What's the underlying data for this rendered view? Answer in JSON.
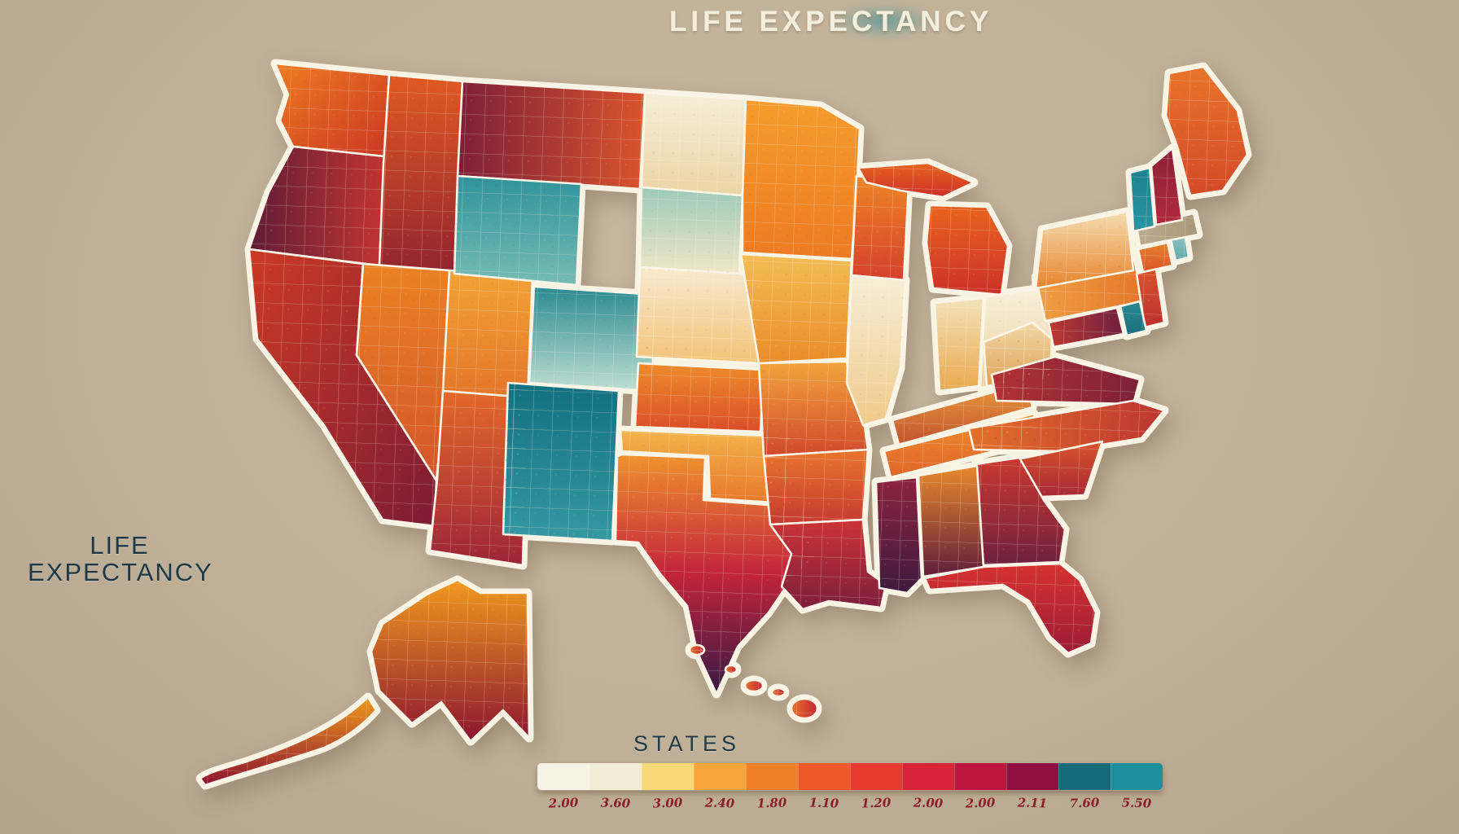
{
  "title": {
    "text": "LIFE EXPECTANCY"
  },
  "side_label": {
    "line1": "LIFE",
    "line2": "EXPECTANCY"
  },
  "chart_data": {
    "type": "choropleth_map",
    "title": "LIFE EXPECTANCY",
    "region": "United States (50 states, Alaska and Hawaii insets)",
    "style_note": "decorative watercolor county-mosaic choropleth on tan background; warm cream-yellow-orange-red-maroon scale with teal extreme",
    "legend": {
      "label": "STATES",
      "position": "bottom center",
      "colors": [
        "#f7f2e4",
        "#f3ecd6",
        "#f8d878",
        "#f6a53c",
        "#f1802a",
        "#ed5a28",
        "#e83a2e",
        "#d92339",
        "#bc163e",
        "#8f1040",
        "#166b7a",
        "#1d8e9b"
      ],
      "ticks": [
        "2.00",
        "3.60",
        "3.00",
        "2.40",
        "1.80",
        "1.10",
        "1.20",
        "2.00",
        "2.00",
        "2.11",
        "7.60",
        "5.50"
      ],
      "ticks_note": "tick numerals are stylized/illegible in source image; best-effort transcription"
    },
    "states": [
      {
        "id": "WA",
        "name": "Washington",
        "colors": [
          "#ef7b20",
          "#c93723"
        ],
        "dir": "d"
      },
      {
        "id": "OR",
        "name": "Oregon",
        "colors": [
          "#5f1c36",
          "#c13430"
        ],
        "dir": "h"
      },
      {
        "id": "CA",
        "name": "California",
        "colors": [
          "#cc3a24",
          "#7c1b34"
        ],
        "dir": "d"
      },
      {
        "id": "ID",
        "name": "Idaho",
        "colors": [
          "#e05a22",
          "#93242f"
        ],
        "dir": "v"
      },
      {
        "id": "NV",
        "name": "Nevada",
        "colors": [
          "#ea8224",
          "#d4552a"
        ],
        "dir": "v"
      },
      {
        "id": "UT",
        "name": "Utah",
        "colors": [
          "#f2a336",
          "#e4762a"
        ],
        "dir": "v"
      },
      {
        "id": "AZ",
        "name": "Arizona",
        "colors": [
          "#e4692b",
          "#9c2438"
        ],
        "dir": "v"
      },
      {
        "id": "MT",
        "name": "Montana",
        "colors": [
          "#7c1e38",
          "#d8542c"
        ],
        "dir": "h"
      },
      {
        "id": "WY",
        "name": "Wyoming",
        "colors": [
          "#2f939b",
          "#76bcb4"
        ],
        "dir": "v"
      },
      {
        "id": "CO",
        "name": "Colorado",
        "colors": [
          "#2a8a91",
          "#bfded2"
        ],
        "dir": "v"
      },
      {
        "id": "NM",
        "name": "New Mexico",
        "colors": [
          "#13707f",
          "#3598a2"
        ],
        "dir": "v"
      },
      {
        "id": "ND",
        "name": "North Dakota",
        "colors": [
          "#f5eed8",
          "#ecd4a4"
        ],
        "dir": "v"
      },
      {
        "id": "SD",
        "name": "South Dakota",
        "colors": [
          "#9ccab8",
          "#f0e6c8"
        ],
        "dir": "v"
      },
      {
        "id": "NE",
        "name": "Nebraska",
        "colors": [
          "#f7ead0",
          "#f3c377"
        ],
        "dir": "v"
      },
      {
        "id": "KS",
        "name": "Kansas",
        "colors": [
          "#ee8c2b",
          "#da4e2a"
        ],
        "dir": "v"
      },
      {
        "id": "OK",
        "name": "Oklahoma",
        "colors": [
          "#f3b44c",
          "#e8772a"
        ],
        "dir": "v"
      },
      {
        "id": "TX",
        "name": "Texas",
        "colors": [
          "#f0922e",
          "#c2233a",
          "#371a44"
        ],
        "dir": "v"
      },
      {
        "id": "MN",
        "name": "Minnesota",
        "colors": [
          "#f59d2c",
          "#ed7a23"
        ],
        "dir": "v"
      },
      {
        "id": "IA",
        "name": "Iowa",
        "colors": [
          "#f4bd55",
          "#e98c2a"
        ],
        "dir": "v"
      },
      {
        "id": "MO",
        "name": "Missouri",
        "colors": [
          "#f2a43c",
          "#d1492c"
        ],
        "dir": "v"
      },
      {
        "id": "AR",
        "name": "Arkansas",
        "colors": [
          "#e8752c",
          "#c53a30"
        ],
        "dir": "v"
      },
      {
        "id": "LA",
        "name": "Louisiana",
        "colors": [
          "#cc3336",
          "#7c1e3c"
        ],
        "dir": "v"
      },
      {
        "id": "WI",
        "name": "Wisconsin",
        "colors": [
          "#ee8526",
          "#d5402c"
        ],
        "dir": "v"
      },
      {
        "id": "IL",
        "name": "Illinois",
        "colors": [
          "#f7eed6",
          "#efca8a"
        ],
        "dir": "v"
      },
      {
        "id": "MI",
        "name": "Michigan",
        "colors": [
          "#e8641f",
          "#cc3028"
        ],
        "dir": "v"
      },
      {
        "id": "IN",
        "name": "Indiana",
        "colors": [
          "#f4e2ba",
          "#e9a94e"
        ],
        "dir": "v"
      },
      {
        "id": "OH",
        "name": "Ohio",
        "colors": [
          "#f7f0dc",
          "#ecd29e"
        ],
        "dir": "v"
      },
      {
        "id": "KY",
        "name": "Kentucky",
        "colors": [
          "#e89a3c",
          "#c2532e"
        ],
        "dir": "v"
      },
      {
        "id": "TN",
        "name": "Tennessee",
        "colors": [
          "#f0902c",
          "#e0642a"
        ],
        "dir": "v"
      },
      {
        "id": "MS",
        "name": "Mississippi",
        "colors": [
          "#8c2340",
          "#3f1a3e"
        ],
        "dir": "v"
      },
      {
        "id": "AL",
        "name": "Alabama",
        "colors": [
          "#e8892c",
          "#5f1d3a"
        ],
        "dir": "v"
      },
      {
        "id": "GA",
        "name": "Georgia",
        "colors": [
          "#ca392e",
          "#6e2040"
        ],
        "dir": "v"
      },
      {
        "id": "FL",
        "name": "Florida",
        "colors": [
          "#d63230",
          "#9c1c36"
        ],
        "dir": "v"
      },
      {
        "id": "SC",
        "name": "South Carolina",
        "colors": [
          "#d8532a",
          "#a82936"
        ],
        "dir": "v"
      },
      {
        "id": "NC",
        "name": "North Carolina",
        "colors": [
          "#e2712a",
          "#bc3530"
        ],
        "dir": "h"
      },
      {
        "id": "VA",
        "name": "Virginia",
        "colors": [
          "#b23334",
          "#7c2038"
        ],
        "dir": "h"
      },
      {
        "id": "WV",
        "name": "West Virginia",
        "colors": [
          "#f0d8a6",
          "#dfa257"
        ],
        "dir": "v"
      },
      {
        "id": "PA",
        "name": "Pennsylvania",
        "colors": [
          "#f0a044",
          "#e4762a"
        ],
        "dir": "h"
      },
      {
        "id": "NY",
        "name": "New York",
        "colors": [
          "#f4ddb0",
          "#e8832c"
        ],
        "dir": "v"
      },
      {
        "id": "NJ",
        "name": "New Jersey",
        "colors": [
          "#d8552a",
          "#bc2f30"
        ],
        "dir": "v"
      },
      {
        "id": "MD",
        "name": "Maryland",
        "colors": [
          "#bc3930",
          "#6e2040"
        ],
        "dir": "h"
      },
      {
        "id": "DE",
        "name": "Delaware",
        "colors": [
          "#2a8a94",
          "#1a6e7c"
        ],
        "dir": "v"
      },
      {
        "id": "CT",
        "name": "Connecticut",
        "colors": [
          "#e8832c",
          "#d8552a"
        ],
        "dir": "v"
      },
      {
        "id": "RI",
        "name": "Rhode Island",
        "colors": [
          "#8cc4c0",
          "#5aa8a8"
        ],
        "dir": "v"
      },
      {
        "id": "MA",
        "name": "Massachusetts",
        "colors": [
          "#bcab90",
          "#a89878"
        ],
        "dir": "h"
      },
      {
        "id": "VT",
        "name": "Vermont",
        "colors": [
          "#1d808e",
          "#2a94a0"
        ],
        "dir": "v"
      },
      {
        "id": "NH",
        "name": "New Hampshire",
        "colors": [
          "#8c2038",
          "#b02a3c"
        ],
        "dir": "v"
      },
      {
        "id": "ME",
        "name": "Maine",
        "colors": [
          "#e8742a",
          "#d44a28"
        ],
        "dir": "v"
      },
      {
        "id": "AK",
        "name": "Alaska",
        "colors": [
          "#f09a1e",
          "#8c1430"
        ],
        "dir": "v"
      },
      {
        "id": "HI",
        "name": "Hawaii",
        "colors": [
          "#e8742a",
          "#c22336"
        ],
        "dir": "h"
      }
    ]
  }
}
